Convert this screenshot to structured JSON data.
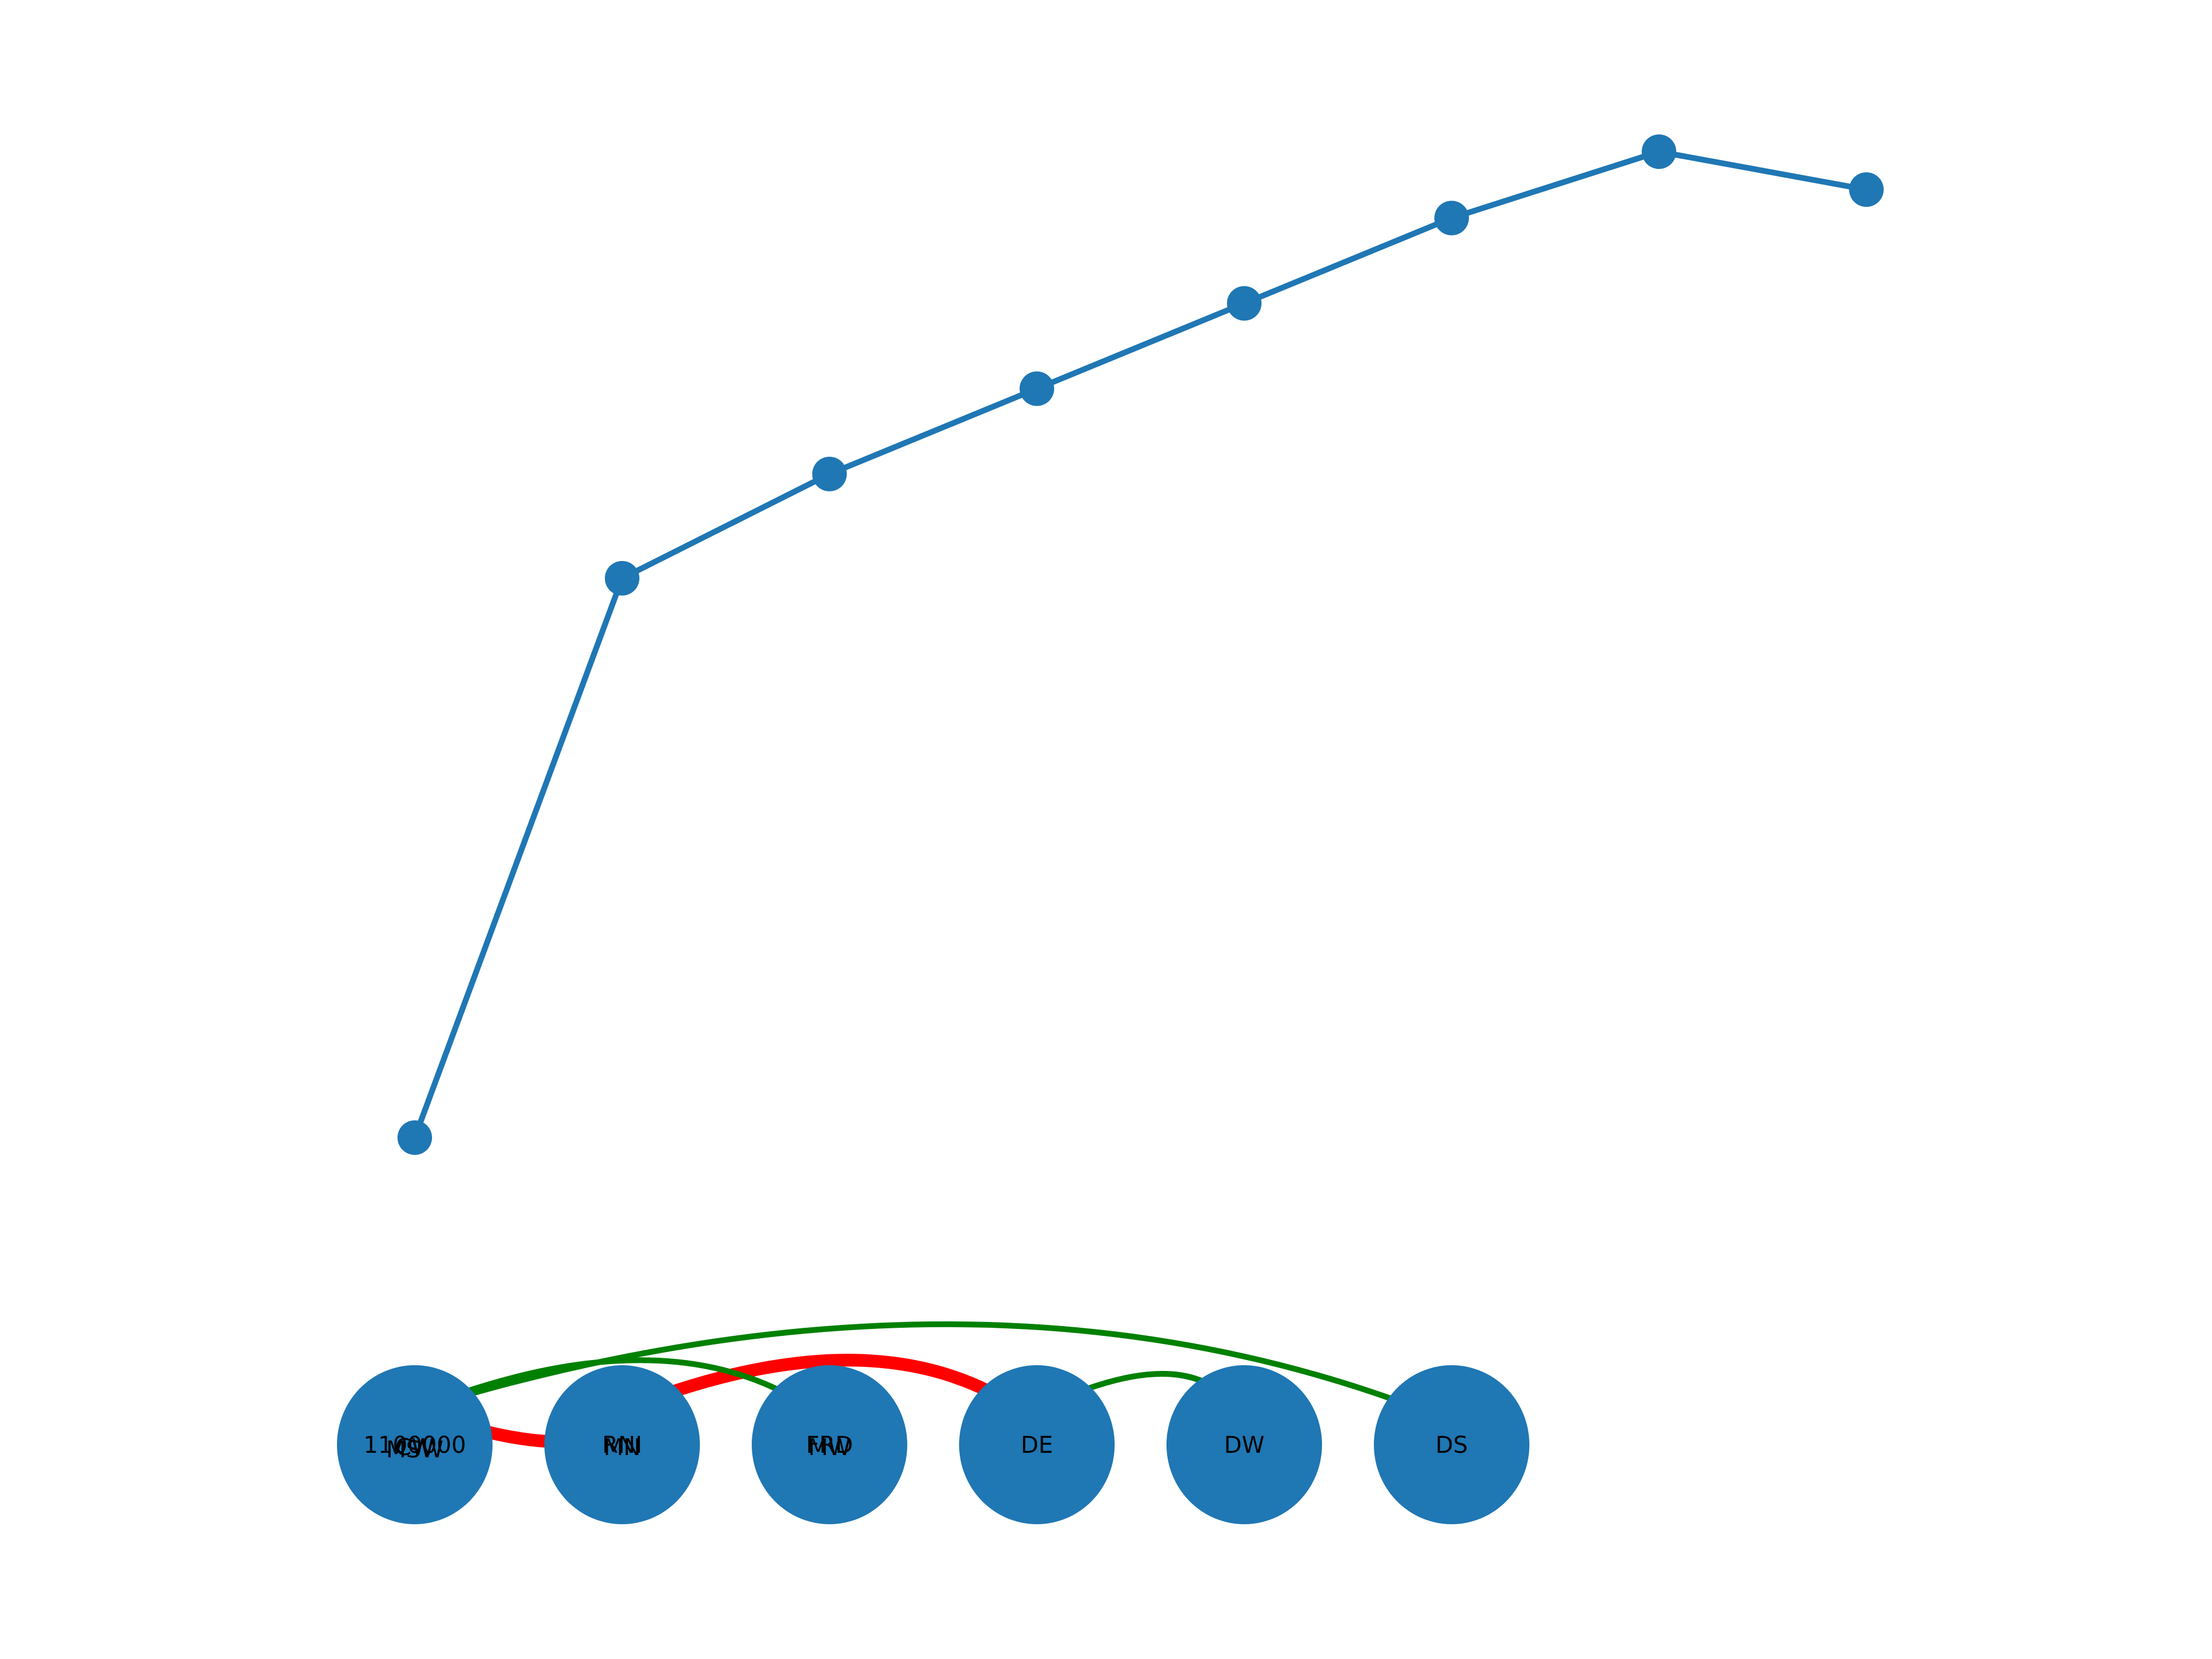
{
  "chart_data": {
    "type": "line",
    "x": [
      1,
      2,
      3,
      4,
      5,
      6,
      7,
      8
    ],
    "series": [
      {
        "values": [
          0.0,
          0.59,
          0.7,
          0.79,
          0.88,
          0.97,
          1.04,
          1.0
        ],
        "color": "#1f77b4"
      }
    ],
    "xlim": [
      0,
      9
    ],
    "ylim": [
      -0.55,
      1.2
    ],
    "grid": false,
    "axes_visible": false
  },
  "graph": {
    "node_color": "#1f77b4",
    "nodes": [
      {
        "labels": [
          "1100000",
          "CW",
          "MSW"
        ]
      },
      {
        "labels": [
          "RNI",
          "MN"
        ]
      },
      {
        "labels": [
          "FRD",
          "MW"
        ]
      },
      {
        "labels": [
          "DE"
        ]
      },
      {
        "labels": [
          "DW"
        ]
      },
      {
        "labels": [
          "DS"
        ]
      }
    ],
    "edges": [
      {
        "from": 0,
        "to": 1,
        "color": "#ff0000",
        "width": "thick"
      },
      {
        "from": 1,
        "to": 3,
        "color": "#ff0000",
        "width": "thick"
      },
      {
        "from": 0,
        "to": 2,
        "color": "#008000",
        "width": "thin"
      },
      {
        "from": 0,
        "to": 5,
        "color": "#008000",
        "width": "thin"
      },
      {
        "from": 3,
        "to": 4,
        "color": "#008000",
        "width": "thin"
      }
    ]
  }
}
